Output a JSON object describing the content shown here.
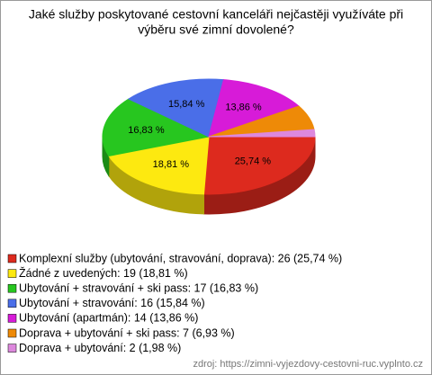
{
  "chart_data": {
    "type": "pie",
    "title": [
      "Jaké služby poskytované cestovní kanceláři nejčastěji využíváte při",
      "výběru své zimní dovolené?"
    ],
    "values": [
      26,
      19,
      17,
      16,
      14,
      7,
      2
    ],
    "colors": [
      "#dd2a1e",
      "#fde910",
      "#27c61f",
      "#4a6ee8",
      "#d71bd8",
      "#ee8a07",
      "#dd88dd"
    ],
    "slice_labels": [
      "25,74 %",
      "18,81 %",
      "16,83 %",
      "15,84 %",
      "13,86 %",
      null,
      null
    ],
    "legend": [
      "Komplexní služby (ubytování, stravování, doprava): 26 (25,74 %)",
      "Žádné z uvedených: 19 (18,81 %)",
      "Ubytování + stravování + ski pass: 17 (16,83 %)",
      "Ubytování + stravování: 16 (15,84 %)",
      "Ubytování (apartmán): 14 (13,86 %)",
      "Doprava + ubytování + ski pass: 7 (6,93 %)",
      "Doprava + ubytování: 2 (1,98 %)"
    ],
    "source": "zdroj: https://zimni-vyjezdovy-cestovni-ruc.vyplnto.cz"
  }
}
